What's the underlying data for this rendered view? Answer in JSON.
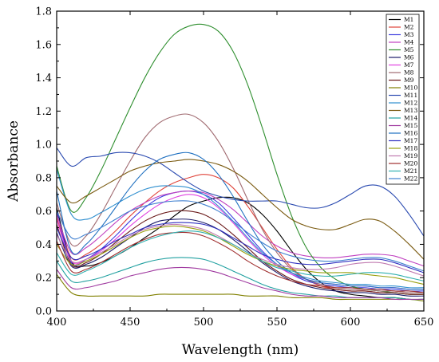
{
  "chart_data": {
    "type": "line",
    "title": "",
    "xlabel": "Wavelength (nm)",
    "ylabel": "Absorbance",
    "xlim": [
      400,
      650
    ],
    "ylim": [
      0.0,
      1.8
    ],
    "xticks": [
      400,
      450,
      500,
      550,
      600,
      650
    ],
    "yticks": [
      0.0,
      0.2,
      0.4,
      0.6,
      0.8,
      1.0,
      1.2,
      1.4,
      1.6,
      1.8
    ],
    "xtick_labels": [
      "400",
      "450",
      "500",
      "550",
      "600",
      "650"
    ],
    "ytick_labels": [
      "0.0",
      "0.2",
      "0.4",
      "0.6",
      "0.8",
      "1.0",
      "1.2",
      "1.4",
      "1.6",
      "1.8"
    ],
    "grid": false,
    "legend_position": "top-right",
    "x": [
      400,
      410,
      420,
      430,
      440,
      450,
      460,
      470,
      480,
      490,
      500,
      510,
      520,
      530,
      540,
      550,
      560,
      570,
      580,
      590,
      600,
      610,
      620,
      630,
      640,
      650
    ],
    "series": [
      {
        "name": "M1",
        "color": "#000000",
        "values": [
          0.62,
          0.3,
          0.27,
          0.29,
          0.33,
          0.38,
          0.44,
          0.5,
          0.57,
          0.63,
          0.66,
          0.68,
          0.68,
          0.65,
          0.58,
          0.48,
          0.36,
          0.25,
          0.17,
          0.12,
          0.1,
          0.09,
          0.08,
          0.08,
          0.07,
          0.07
        ]
      },
      {
        "name": "M2",
        "color": "#e0443a",
        "values": [
          0.56,
          0.32,
          0.34,
          0.4,
          0.48,
          0.57,
          0.65,
          0.72,
          0.77,
          0.8,
          0.82,
          0.8,
          0.74,
          0.63,
          0.5,
          0.37,
          0.26,
          0.19,
          0.15,
          0.13,
          0.12,
          0.12,
          0.11,
          0.11,
          0.1,
          0.1
        ]
      },
      {
        "name": "M3",
        "color": "#4040e0",
        "values": [
          0.6,
          0.29,
          0.31,
          0.37,
          0.45,
          0.54,
          0.62,
          0.68,
          0.71,
          0.72,
          0.7,
          0.65,
          0.56,
          0.46,
          0.36,
          0.28,
          0.22,
          0.18,
          0.16,
          0.15,
          0.14,
          0.14,
          0.13,
          0.13,
          0.12,
          0.12
        ]
      },
      {
        "name": "M4",
        "color": "#c040c0",
        "values": [
          0.58,
          0.35,
          0.38,
          0.45,
          0.53,
          0.6,
          0.65,
          0.69,
          0.71,
          0.72,
          0.71,
          0.67,
          0.61,
          0.53,
          0.45,
          0.39,
          0.35,
          0.33,
          0.32,
          0.32,
          0.33,
          0.34,
          0.34,
          0.33,
          0.3,
          0.27
        ]
      },
      {
        "name": "M5",
        "color": "#2f8f2f",
        "values": [
          0.87,
          0.6,
          0.68,
          0.84,
          1.03,
          1.22,
          1.4,
          1.55,
          1.66,
          1.71,
          1.72,
          1.68,
          1.56,
          1.36,
          1.1,
          0.82,
          0.57,
          0.38,
          0.26,
          0.19,
          0.15,
          0.13,
          0.12,
          0.11,
          0.1,
          0.1
        ]
      },
      {
        "name": "M6",
        "color": "#1c1c6a",
        "values": [
          0.47,
          0.27,
          0.28,
          0.32,
          0.38,
          0.44,
          0.5,
          0.54,
          0.55,
          0.55,
          0.53,
          0.49,
          0.43,
          0.36,
          0.29,
          0.23,
          0.18,
          0.15,
          0.13,
          0.12,
          0.11,
          0.11,
          0.1,
          0.1,
          0.09,
          0.09
        ]
      },
      {
        "name": "M7",
        "color": "#e040e0",
        "values": [
          0.55,
          0.3,
          0.31,
          0.36,
          0.43,
          0.51,
          0.58,
          0.64,
          0.68,
          0.7,
          0.68,
          0.62,
          0.53,
          0.43,
          0.34,
          0.27,
          0.22,
          0.19,
          0.17,
          0.16,
          0.15,
          0.15,
          0.14,
          0.14,
          0.13,
          0.13
        ]
      },
      {
        "name": "M8",
        "color": "#a06a70",
        "values": [
          0.65,
          0.4,
          0.45,
          0.58,
          0.74,
          0.9,
          1.04,
          1.13,
          1.17,
          1.18,
          1.13,
          1.02,
          0.86,
          0.67,
          0.49,
          0.35,
          0.25,
          0.19,
          0.16,
          0.14,
          0.13,
          0.13,
          0.12,
          0.12,
          0.11,
          0.11
        ]
      },
      {
        "name": "M9",
        "color": "#6a1a1a",
        "values": [
          0.52,
          0.28,
          0.29,
          0.34,
          0.41,
          0.48,
          0.54,
          0.58,
          0.6,
          0.6,
          0.58,
          0.53,
          0.46,
          0.38,
          0.3,
          0.24,
          0.19,
          0.16,
          0.14,
          0.13,
          0.12,
          0.12,
          0.11,
          0.11,
          0.1,
          0.1
        ]
      },
      {
        "name": "M10",
        "color": "#808000",
        "values": [
          0.22,
          0.11,
          0.09,
          0.09,
          0.09,
          0.09,
          0.09,
          0.1,
          0.1,
          0.1,
          0.1,
          0.1,
          0.1,
          0.09,
          0.09,
          0.09,
          0.08,
          0.08,
          0.08,
          0.07,
          0.07,
          0.07,
          0.07,
          0.07,
          0.07,
          0.06
        ]
      },
      {
        "name": "M11",
        "color": "#2a4ab0",
        "values": [
          0.98,
          0.87,
          0.92,
          0.93,
          0.95,
          0.95,
          0.93,
          0.89,
          0.83,
          0.77,
          0.72,
          0.69,
          0.67,
          0.66,
          0.66,
          0.66,
          0.64,
          0.62,
          0.62,
          0.65,
          0.7,
          0.75,
          0.75,
          0.69,
          0.58,
          0.45
        ]
      },
      {
        "name": "M12",
        "color": "#2f8fcf",
        "values": [
          0.85,
          0.58,
          0.55,
          0.59,
          0.64,
          0.69,
          0.73,
          0.75,
          0.75,
          0.74,
          0.7,
          0.63,
          0.54,
          0.44,
          0.35,
          0.28,
          0.23,
          0.2,
          0.18,
          0.17,
          0.16,
          0.16,
          0.15,
          0.15,
          0.14,
          0.14
        ]
      },
      {
        "name": "M13",
        "color": "#7a5a10",
        "values": [
          0.75,
          0.65,
          0.69,
          0.74,
          0.79,
          0.84,
          0.87,
          0.89,
          0.9,
          0.91,
          0.9,
          0.88,
          0.84,
          0.78,
          0.7,
          0.62,
          0.55,
          0.51,
          0.49,
          0.49,
          0.52,
          0.55,
          0.54,
          0.48,
          0.4,
          0.31
        ]
      },
      {
        "name": "M14",
        "color": "#20a0a0",
        "values": [
          0.3,
          0.18,
          0.18,
          0.2,
          0.23,
          0.26,
          0.29,
          0.31,
          0.32,
          0.32,
          0.31,
          0.28,
          0.24,
          0.2,
          0.16,
          0.13,
          0.11,
          0.1,
          0.09,
          0.09,
          0.08,
          0.08,
          0.08,
          0.08,
          0.07,
          0.07
        ]
      },
      {
        "name": "M15",
        "color": "#a03aa0",
        "values": [
          0.25,
          0.14,
          0.14,
          0.16,
          0.18,
          0.21,
          0.23,
          0.25,
          0.26,
          0.26,
          0.25,
          0.23,
          0.2,
          0.17,
          0.14,
          0.12,
          0.1,
          0.09,
          0.09,
          0.08,
          0.08,
          0.08,
          0.08,
          0.07,
          0.07,
          0.07
        ]
      },
      {
        "name": "M16",
        "color": "#1f70c0",
        "values": [
          0.72,
          0.36,
          0.4,
          0.5,
          0.62,
          0.74,
          0.84,
          0.91,
          0.94,
          0.95,
          0.91,
          0.82,
          0.69,
          0.54,
          0.4,
          0.3,
          0.23,
          0.19,
          0.17,
          0.16,
          0.15,
          0.15,
          0.14,
          0.14,
          0.13,
          0.13
        ]
      },
      {
        "name": "M17",
        "color": "#3030c0",
        "values": [
          0.5,
          0.32,
          0.33,
          0.37,
          0.42,
          0.46,
          0.5,
          0.52,
          0.53,
          0.53,
          0.52,
          0.49,
          0.44,
          0.39,
          0.34,
          0.31,
          0.29,
          0.28,
          0.28,
          0.29,
          0.3,
          0.31,
          0.31,
          0.29,
          0.26,
          0.23
        ]
      },
      {
        "name": "M18",
        "color": "#9aa010",
        "values": [
          0.4,
          0.28,
          0.3,
          0.34,
          0.39,
          0.44,
          0.48,
          0.5,
          0.51,
          0.5,
          0.48,
          0.44,
          0.39,
          0.34,
          0.3,
          0.27,
          0.25,
          0.24,
          0.23,
          0.23,
          0.23,
          0.22,
          0.21,
          0.2,
          0.18,
          0.16
        ]
      },
      {
        "name": "M19",
        "color": "#c07ab0",
        "values": [
          0.46,
          0.3,
          0.31,
          0.35,
          0.4,
          0.45,
          0.49,
          0.51,
          0.52,
          0.51,
          0.49,
          0.45,
          0.4,
          0.35,
          0.31,
          0.28,
          0.26,
          0.25,
          0.25,
          0.26,
          0.28,
          0.29,
          0.29,
          0.27,
          0.24,
          0.21
        ]
      },
      {
        "name": "M20",
        "color": "#a03030",
        "values": [
          0.42,
          0.24,
          0.25,
          0.29,
          0.34,
          0.39,
          0.43,
          0.46,
          0.47,
          0.47,
          0.45,
          0.41,
          0.36,
          0.3,
          0.25,
          0.21,
          0.18,
          0.16,
          0.15,
          0.14,
          0.14,
          0.13,
          0.13,
          0.12,
          0.12,
          0.11
        ]
      },
      {
        "name": "M21",
        "color": "#30b0b0",
        "values": [
          0.35,
          0.22,
          0.24,
          0.28,
          0.33,
          0.38,
          0.42,
          0.45,
          0.47,
          0.48,
          0.47,
          0.44,
          0.4,
          0.35,
          0.3,
          0.26,
          0.24,
          0.22,
          0.21,
          0.21,
          0.22,
          0.23,
          0.23,
          0.22,
          0.2,
          0.18
        ]
      },
      {
        "name": "M22",
        "color": "#4080d0",
        "values": [
          0.6,
          0.44,
          0.46,
          0.5,
          0.55,
          0.6,
          0.63,
          0.65,
          0.66,
          0.66,
          0.64,
          0.6,
          0.54,
          0.47,
          0.41,
          0.36,
          0.33,
          0.31,
          0.3,
          0.3,
          0.31,
          0.32,
          0.32,
          0.3,
          0.27,
          0.24
        ]
      }
    ]
  }
}
